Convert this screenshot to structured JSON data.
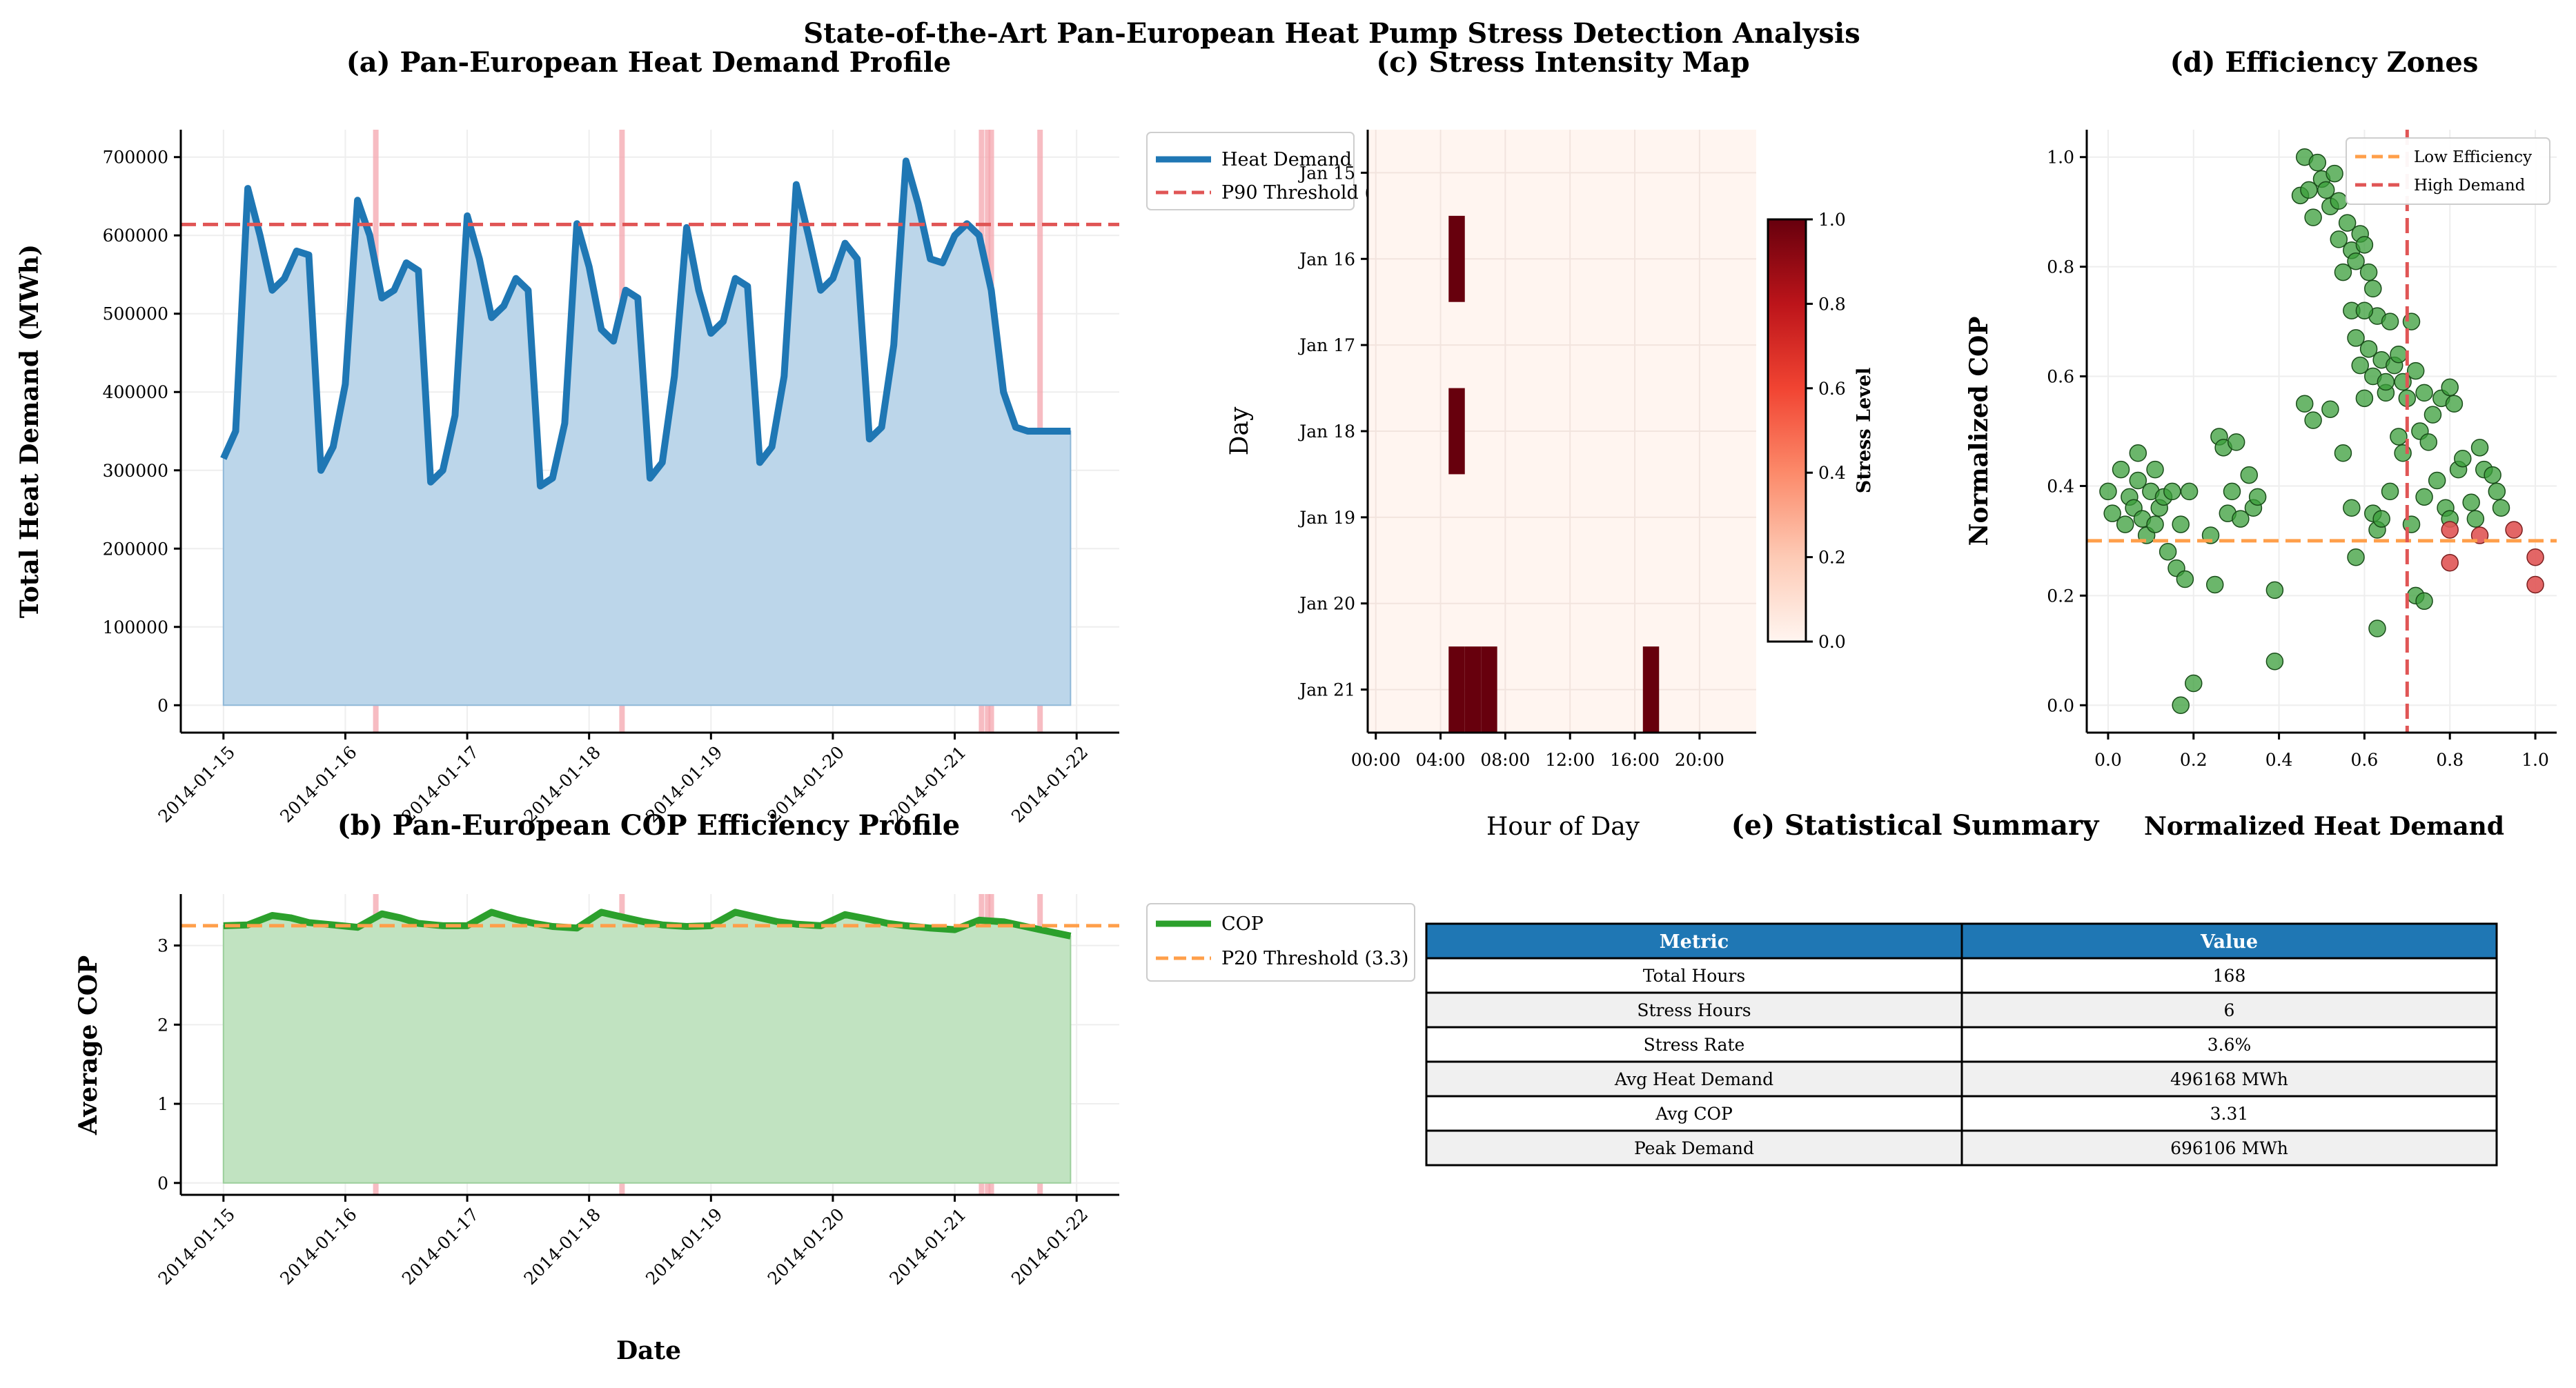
{
  "suptitle": "State-of-the-Art Pan-European Heat Pump Stress Detection Analysis",
  "colors": {
    "demand_line": "#1f77b4",
    "demand_fill": "#bcd6ea",
    "cop_line": "#2ca02c",
    "cop_fill": "#c1e3c1",
    "p90": "#e05555",
    "p20": "#ff9f4a",
    "stress_band": "#f4a6ae",
    "heat_low": "#fff5f0",
    "heat_high": "#67000d",
    "point_normal": "#3a9e3a",
    "point_stress": "#e05555",
    "table_header": "#1f77b4"
  },
  "panel_a": {
    "title": "(a) Pan-European Heat Demand Profile",
    "ylabel": "Total Heat Demand (MWh)",
    "yticks": [
      "0",
      "100000",
      "200000",
      "300000",
      "400000",
      "500000",
      "600000",
      "700000"
    ],
    "xticks": [
      "2014-01-15",
      "2014-01-16",
      "2014-01-17",
      "2014-01-18",
      "2014-01-19",
      "2014-01-20",
      "2014-01-21",
      "2014-01-22"
    ],
    "legend": [
      "Heat Demand",
      "P90 Threshold ("
    ]
  },
  "panel_b": {
    "title": "(b) Pan-European COP Efficiency Profile",
    "ylabel": "Average COP",
    "xlabel": "Date",
    "yticks": [
      "0",
      "1",
      "2",
      "3"
    ],
    "xticks": [
      "2014-01-15",
      "2014-01-16",
      "2014-01-17",
      "2014-01-18",
      "2014-01-19",
      "2014-01-20",
      "2014-01-21",
      "2014-01-22"
    ],
    "legend": [
      "COP",
      "P20 Threshold (3.3)"
    ]
  },
  "panel_c": {
    "title": "(c) Stress Intensity Map",
    "ylabel": "Day",
    "xlabel": "Hour of Day",
    "yticks": [
      "Jan 15",
      "Jan 16",
      "Jan 17",
      "Jan 18",
      "Jan 19",
      "Jan 20",
      "Jan 21"
    ],
    "xticks": [
      "00:00",
      "04:00",
      "08:00",
      "12:00",
      "16:00",
      "20:00"
    ],
    "colorbar_label": "Stress Level",
    "colorbar_ticks": [
      "0.0",
      "0.2",
      "0.4",
      "0.6",
      "0.8",
      "1.0"
    ]
  },
  "panel_d": {
    "title": "(d) Efficiency Zones",
    "ylabel": "Normalized COP",
    "xlabel": "Normalized Heat Demand",
    "ticks": [
      "0.0",
      "0.2",
      "0.4",
      "0.6",
      "0.8",
      "1.0"
    ],
    "legend": [
      "Low Efficiency",
      "High Demand"
    ]
  },
  "panel_e": {
    "title": "(e) Statistical Summary",
    "headers": [
      "Metric",
      "Value"
    ],
    "rows": [
      [
        "Total Hours",
        "168"
      ],
      [
        "Stress Hours",
        "6"
      ],
      [
        "Stress Rate",
        "3.6%"
      ],
      [
        "Avg Heat Demand",
        "496168 MWh"
      ],
      [
        "Avg COP",
        "3.31"
      ],
      [
        "Peak Demand",
        "696106 MWh"
      ]
    ]
  },
  "chart_data": [
    {
      "type": "area",
      "panel": "a",
      "x_unit": "days since 2014-01-15",
      "x": [
        0,
        0.1,
        0.2,
        0.3,
        0.4,
        0.5,
        0.6,
        0.7,
        0.8,
        0.9,
        1.0,
        1.1,
        1.2,
        1.3,
        1.4,
        1.5,
        1.6,
        1.7,
        1.8,
        1.9,
        2.0,
        2.1,
        2.2,
        2.3,
        2.4,
        2.5,
        2.6,
        2.7,
        2.8,
        2.9,
        3.0,
        3.1,
        3.2,
        3.3,
        3.4,
        3.5,
        3.6,
        3.7,
        3.8,
        3.9,
        4.0,
        4.1,
        4.2,
        4.3,
        4.4,
        4.5,
        4.6,
        4.7,
        4.8,
        4.9,
        5.0,
        5.1,
        5.2,
        5.3,
        5.4,
        5.5,
        5.6,
        5.7,
        5.8,
        5.9,
        6.0,
        6.1,
        6.2,
        6.3,
        6.4,
        6.5,
        6.6,
        6.7,
        6.8,
        6.9,
        6.95
      ],
      "values": [
        315000,
        350000,
        660000,
        600000,
        530000,
        545000,
        580000,
        575000,
        300000,
        330000,
        410000,
        645000,
        600000,
        520000,
        530000,
        565000,
        555000,
        285000,
        300000,
        370000,
        625000,
        570000,
        495000,
        510000,
        545000,
        530000,
        280000,
        290000,
        360000,
        615000,
        560000,
        480000,
        465000,
        530000,
        520000,
        290000,
        310000,
        420000,
        610000,
        530000,
        475000,
        490000,
        545000,
        535000,
        310000,
        330000,
        420000,
        665000,
        600000,
        530000,
        545000,
        590000,
        570000,
        340000,
        355000,
        460000,
        695000,
        640000,
        570000,
        565000,
        600000,
        615000,
        600000,
        530000,
        400000,
        355000,
        350000,
        350000,
        350000,
        350000,
        350000
      ],
      "ylim": [
        -35000,
        735000
      ],
      "xlim": [
        -0.35,
        7.35
      ],
      "threshold_p90": 614000,
      "stress_times": [
        1.25,
        3.27,
        6.22,
        6.27,
        6.3,
        6.7
      ],
      "series": [
        {
          "name": "Heat Demand"
        },
        {
          "name": "P90 Threshold ("
        }
      ]
    },
    {
      "type": "area",
      "panel": "b",
      "x_unit": "days since 2014-01-15",
      "x": [
        0,
        0.2,
        0.4,
        0.55,
        0.7,
        0.9,
        1.1,
        1.3,
        1.45,
        1.6,
        1.8,
        2.0,
        2.2,
        2.4,
        2.55,
        2.7,
        2.9,
        3.1,
        3.3,
        3.45,
        3.6,
        3.8,
        4.0,
        4.2,
        4.4,
        4.55,
        4.7,
        4.9,
        5.1,
        5.3,
        5.45,
        5.6,
        5.8,
        6.0,
        6.2,
        6.4,
        6.55,
        6.7,
        6.95
      ],
      "values": [
        3.25,
        3.26,
        3.38,
        3.35,
        3.29,
        3.26,
        3.23,
        3.4,
        3.35,
        3.28,
        3.25,
        3.25,
        3.42,
        3.33,
        3.28,
        3.24,
        3.22,
        3.42,
        3.35,
        3.3,
        3.26,
        3.24,
        3.25,
        3.42,
        3.35,
        3.3,
        3.27,
        3.25,
        3.39,
        3.33,
        3.28,
        3.25,
        3.22,
        3.2,
        3.32,
        3.3,
        3.25,
        3.2,
        3.12
      ],
      "ylim": [
        -0.15,
        3.65
      ],
      "xlim": [
        -0.35,
        7.35
      ],
      "threshold_p20": 3.25,
      "stress_times": [
        1.25,
        3.27,
        6.22,
        6.27,
        6.3,
        6.7
      ],
      "series": [
        {
          "name": "COP"
        },
        {
          "name": "P20 Threshold (3.3)"
        }
      ]
    },
    {
      "type": "heatmap",
      "panel": "c",
      "rows": [
        "Jan 15",
        "Jan 16",
        "Jan 17",
        "Jan 18",
        "Jan 19",
        "Jan 20",
        "Jan 21"
      ],
      "stress_cells": [
        {
          "day": 1,
          "hour": 5,
          "value": 1.0
        },
        {
          "day": 3,
          "hour": 5,
          "value": 1.0
        },
        {
          "day": 6,
          "hour": 5,
          "value": 1.0
        },
        {
          "day": 6,
          "hour": 6,
          "value": 1.0
        },
        {
          "day": 6,
          "hour": 7,
          "value": 1.0
        },
        {
          "day": 6,
          "hour": 17,
          "value": 1.0
        }
      ],
      "value_range": [
        0,
        1
      ]
    },
    {
      "type": "scatter",
      "panel": "d",
      "xlim": [
        -0.05,
        1.05
      ],
      "ylim": [
        -0.05,
        1.05
      ],
      "threshold_low_eff": 0.3,
      "threshold_high_demand": 0.7,
      "points_normal": [
        [
          0.0,
          0.39
        ],
        [
          0.01,
          0.35
        ],
        [
          0.03,
          0.43
        ],
        [
          0.04,
          0.33
        ],
        [
          0.05,
          0.38
        ],
        [
          0.06,
          0.36
        ],
        [
          0.07,
          0.46
        ],
        [
          0.07,
          0.41
        ],
        [
          0.08,
          0.34
        ],
        [
          0.09,
          0.31
        ],
        [
          0.1,
          0.39
        ],
        [
          0.11,
          0.43
        ],
        [
          0.11,
          0.33
        ],
        [
          0.12,
          0.36
        ],
        [
          0.13,
          0.38
        ],
        [
          0.14,
          0.28
        ],
        [
          0.15,
          0.39
        ],
        [
          0.16,
          0.25
        ],
        [
          0.17,
          0.33
        ],
        [
          0.18,
          0.23
        ],
        [
          0.19,
          0.39
        ],
        [
          0.17,
          0.0
        ],
        [
          0.2,
          0.04
        ],
        [
          0.24,
          0.31
        ],
        [
          0.25,
          0.22
        ],
        [
          0.26,
          0.49
        ],
        [
          0.27,
          0.47
        ],
        [
          0.28,
          0.35
        ],
        [
          0.29,
          0.39
        ],
        [
          0.3,
          0.48
        ],
        [
          0.31,
          0.34
        ],
        [
          0.33,
          0.42
        ],
        [
          0.34,
          0.36
        ],
        [
          0.35,
          0.38
        ],
        [
          0.39,
          0.21
        ],
        [
          0.39,
          0.08
        ],
        [
          0.45,
          0.93
        ],
        [
          0.46,
          1.0
        ],
        [
          0.47,
          0.94
        ],
        [
          0.48,
          0.89
        ],
        [
          0.49,
          0.99
        ],
        [
          0.5,
          0.96
        ],
        [
          0.51,
          0.94
        ],
        [
          0.52,
          0.91
        ],
        [
          0.53,
          0.97
        ],
        [
          0.54,
          0.92
        ],
        [
          0.54,
          0.85
        ],
        [
          0.55,
          0.79
        ],
        [
          0.56,
          0.88
        ],
        [
          0.57,
          0.83
        ],
        [
          0.58,
          0.81
        ],
        [
          0.59,
          0.86
        ],
        [
          0.6,
          0.84
        ],
        [
          0.61,
          0.79
        ],
        [
          0.62,
          0.76
        ],
        [
          0.63,
          0.71
        ],
        [
          0.57,
          0.72
        ],
        [
          0.58,
          0.67
        ],
        [
          0.59,
          0.62
        ],
        [
          0.6,
          0.72
        ],
        [
          0.61,
          0.65
        ],
        [
          0.62,
          0.6
        ],
        [
          0.64,
          0.63
        ],
        [
          0.65,
          0.57
        ],
        [
          0.66,
          0.7
        ],
        [
          0.67,
          0.62
        ],
        [
          0.68,
          0.64
        ],
        [
          0.69,
          0.59
        ],
        [
          0.7,
          0.56
        ],
        [
          0.71,
          0.7
        ],
        [
          0.72,
          0.61
        ],
        [
          0.73,
          0.5
        ],
        [
          0.74,
          0.57
        ],
        [
          0.75,
          0.48
        ],
        [
          0.76,
          0.53
        ],
        [
          0.78,
          0.56
        ],
        [
          0.79,
          0.36
        ],
        [
          0.8,
          0.58
        ],
        [
          0.81,
          0.55
        ],
        [
          0.82,
          0.43
        ],
        [
          0.83,
          0.45
        ],
        [
          0.85,
          0.37
        ],
        [
          0.86,
          0.34
        ],
        [
          0.87,
          0.47
        ],
        [
          0.88,
          0.43
        ],
        [
          0.9,
          0.42
        ],
        [
          0.91,
          0.39
        ],
        [
          0.92,
          0.36
        ],
        [
          0.46,
          0.55
        ],
        [
          0.48,
          0.52
        ],
        [
          0.52,
          0.54
        ],
        [
          0.55,
          0.46
        ],
        [
          0.57,
          0.36
        ],
        [
          0.58,
          0.27
        ],
        [
          0.6,
          0.56
        ],
        [
          0.62,
          0.35
        ],
        [
          0.63,
          0.32
        ],
        [
          0.64,
          0.34
        ],
        [
          0.65,
          0.59
        ],
        [
          0.66,
          0.39
        ],
        [
          0.68,
          0.49
        ],
        [
          0.69,
          0.46
        ],
        [
          0.72,
          0.2
        ],
        [
          0.74,
          0.19
        ],
        [
          0.63,
          0.14
        ],
        [
          0.71,
          0.33
        ],
        [
          0.74,
          0.38
        ],
        [
          0.77,
          0.41
        ],
        [
          0.8,
          0.34
        ]
      ],
      "points_stress": [
        [
          0.8,
          0.32
        ],
        [
          0.8,
          0.26
        ],
        [
          0.87,
          0.31
        ],
        [
          0.95,
          0.32
        ],
        [
          1.0,
          0.27
        ],
        [
          1.0,
          0.22
        ]
      ],
      "series": [
        {
          "name": "Low Efficiency"
        },
        {
          "name": "High Demand"
        }
      ]
    }
  ]
}
